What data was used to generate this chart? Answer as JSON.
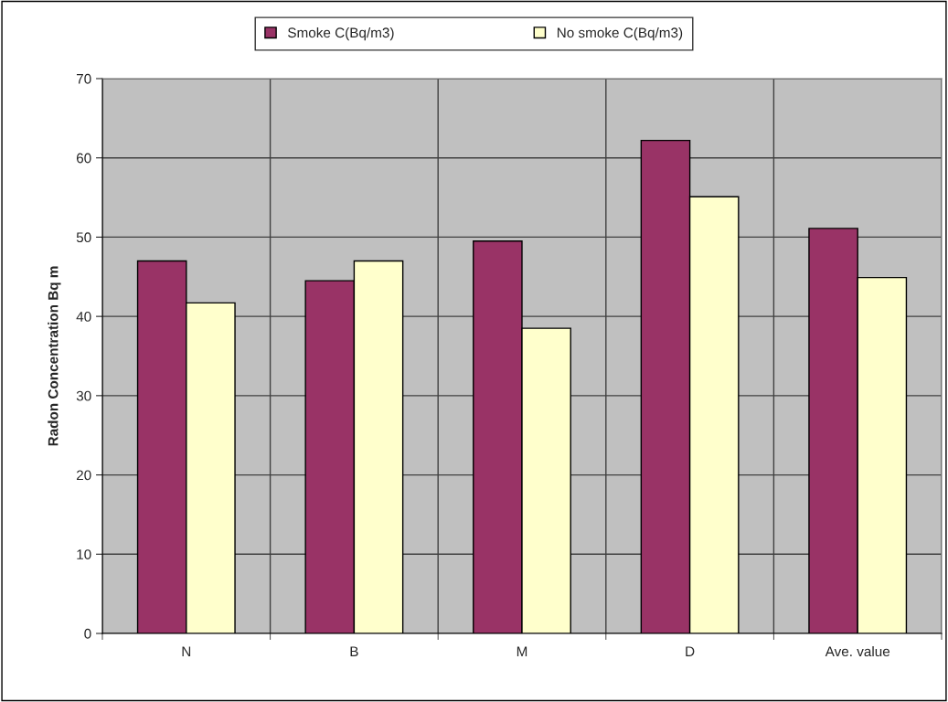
{
  "chart_data": {
    "type": "bar",
    "ylabel": "Radon Concentration Bq m",
    "categories": [
      "N",
      "B",
      "M",
      "D",
      "Ave. value"
    ],
    "series": [
      {
        "name": "Smoke C(Bq/m3)",
        "color": "#993366",
        "values": [
          47.0,
          44.5,
          49.5,
          62.2,
          51.1
        ]
      },
      {
        "name": "No smoke C(Bq/m3)",
        "color": "#ffffcc",
        "values": [
          41.7,
          47.0,
          38.5,
          55.1,
          44.9
        ]
      }
    ],
    "ylim": [
      0,
      70
    ],
    "yticks": [
      0,
      10,
      20,
      30,
      40,
      50,
      60,
      70
    ],
    "grid": true,
    "legend": "top"
  }
}
